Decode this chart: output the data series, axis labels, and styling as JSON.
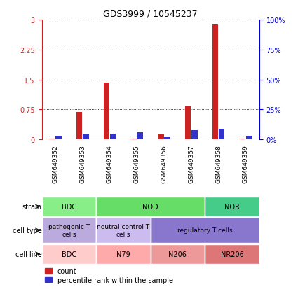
{
  "title": "GDS3999 / 10545237",
  "samples": [
    "GSM649352",
    "GSM649353",
    "GSM649354",
    "GSM649355",
    "GSM649356",
    "GSM649357",
    "GSM649358",
    "GSM649359"
  ],
  "count_values": [
    0.02,
    0.68,
    1.43,
    0.02,
    0.12,
    0.82,
    2.88,
    0.02
  ],
  "percentile_values": [
    3,
    4,
    5,
    6,
    2,
    8,
    9,
    3
  ],
  "ylim_left": [
    0,
    3
  ],
  "ylim_right": [
    0,
    100
  ],
  "yticks_left": [
    0,
    0.75,
    1.5,
    2.25,
    3
  ],
  "yticks_right": [
    0,
    25,
    50,
    75,
    100
  ],
  "ytick_labels_left": [
    "0",
    "0.75",
    "1.5",
    "2.25",
    "3"
  ],
  "ytick_labels_right": [
    "0%",
    "25%",
    "50%",
    "75%",
    "100%"
  ],
  "bar_color_count": "#cc2222",
  "bar_color_pct": "#3333cc",
  "bar_width": 0.35,
  "grid_color": "#000000",
  "grid_alpha": 0.3,
  "strain_labels": [
    {
      "text": "BDC",
      "start": 0,
      "end": 2,
      "color": "#88ee88"
    },
    {
      "text": "NOD",
      "start": 2,
      "end": 6,
      "color": "#66dd66"
    },
    {
      "text": "NOR",
      "start": 6,
      "end": 8,
      "color": "#44cc88"
    }
  ],
  "cell_type_labels": [
    {
      "text": "pathogenic T\ncells",
      "start": 0,
      "end": 2,
      "color": "#bbaadd"
    },
    {
      "text": "neutral control T\ncells",
      "start": 2,
      "end": 4,
      "color": "#ccbbee"
    },
    {
      "text": "regulatory T cells",
      "start": 4,
      "end": 8,
      "color": "#8877cc"
    }
  ],
  "cell_line_labels": [
    {
      "text": "BDC",
      "start": 0,
      "end": 2,
      "color": "#ffcccc"
    },
    {
      "text": "N79",
      "start": 2,
      "end": 4,
      "color": "#ffaaaa"
    },
    {
      "text": "N206",
      "start": 4,
      "end": 6,
      "color": "#ee9999"
    },
    {
      "text": "NR206",
      "start": 6,
      "end": 8,
      "color": "#dd7777"
    }
  ],
  "row_labels": [
    "strain",
    "cell type",
    "cell line"
  ],
  "legend_count": "count",
  "legend_pct": "percentile rank within the sample",
  "xlabel_color": "#000000",
  "left_axis_color": "#cc2222",
  "right_axis_color": "#0000cc",
  "bg_color": "#ffffff",
  "tick_bg_color": "#dddddd"
}
